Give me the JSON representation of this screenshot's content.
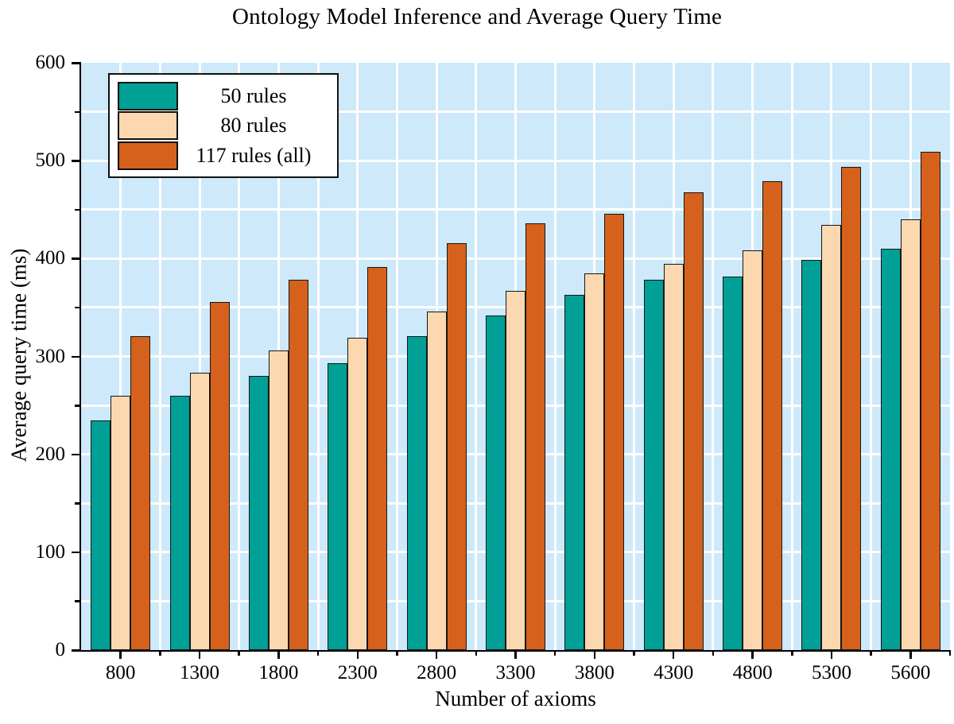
{
  "chart_data": {
    "type": "bar",
    "title": "Ontology Model Inference and Average Query Time",
    "xlabel": "Number of axioms",
    "ylabel": "Average query time (ms)",
    "categories": [
      "800",
      "1300",
      "1800",
      "2300",
      "2800",
      "3300",
      "3800",
      "4300",
      "4800",
      "5300",
      "5600"
    ],
    "series": [
      {
        "name": "50 rules",
        "color": "#00a096",
        "values": [
          235,
          260,
          280,
          293,
          321,
          342,
          363,
          378,
          382,
          399,
          410
        ]
      },
      {
        "name": "80 rules",
        "color": "#fcd8b0",
        "values": [
          260,
          283,
          306,
          319,
          346,
          367,
          385,
          395,
          408,
          434,
          440
        ]
      },
      {
        "name": "117 rules (all)",
        "color": "#d5611d",
        "values": [
          321,
          356,
          378,
          391,
          416,
          436,
          446,
          468,
          479,
          494,
          509
        ]
      }
    ],
    "ylim": [
      0,
      600
    ],
    "ytick_step": 100,
    "yminor_step": 50,
    "grid": true,
    "legend_position": "top-left",
    "plot_bg": "#cde9fa",
    "grid_color": "#ffffff",
    "axis_color": "#000000",
    "bar_border_color": "#161616"
  }
}
